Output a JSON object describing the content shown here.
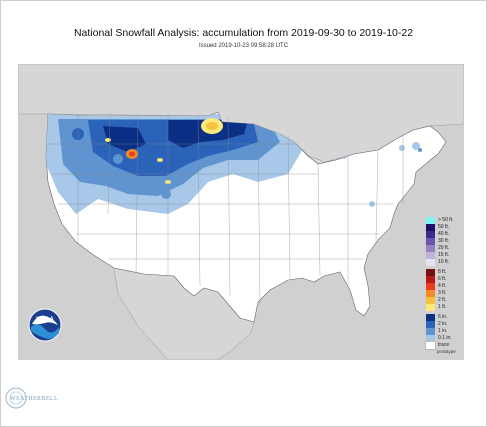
{
  "title": "National Snowfall Analysis: accumulation from 2019-09-30 to 2019-10-22",
  "subtitle": "Issued 2019-10-23 09:58:28 UTC",
  "footer_note": "prototype",
  "logo_text": "NOAA",
  "watermark_text": "WEATHERBELL",
  "legend": {
    "entries": [
      {
        "label": "> 50 ft.",
        "color": "#7ef3f3"
      },
      {
        "label": "50 ft.",
        "color": "#1a1266"
      },
      {
        "label": "40 ft.",
        "color": "#3a2c8c"
      },
      {
        "label": "30 ft.",
        "color": "#6a55aa"
      },
      {
        "label": "20 ft.",
        "color": "#9582c2"
      },
      {
        "label": "15 ft.",
        "color": "#c0b3db"
      },
      {
        "label": "10 ft.",
        "color": "#e8e2f0"
      },
      {
        "label": "8 ft.",
        "color": "#7a0f0f"
      },
      {
        "label": "6 ft.",
        "color": "#b51a1a"
      },
      {
        "label": "4 ft.",
        "color": "#e83c1e"
      },
      {
        "label": "3 ft.",
        "color": "#f28a2b"
      },
      {
        "label": "2 ft.",
        "color": "#f7c23e"
      },
      {
        "label": "1 ft.",
        "color": "#fbe97a"
      },
      {
        "label": "6 in.",
        "color": "#0b2f85"
      },
      {
        "label": "2 in.",
        "color": "#2b63b8"
      },
      {
        "label": "1 in.",
        "color": "#5f94d0"
      },
      {
        "label": "0.1 in.",
        "color": "#a8c8ea"
      },
      {
        "label": "trace",
        "color": "#ffffff"
      }
    ]
  },
  "colors": {
    "background": "#d0d0d0",
    "land": "#ffffff",
    "border": "#777777",
    "water": "#d9d9d9"
  }
}
